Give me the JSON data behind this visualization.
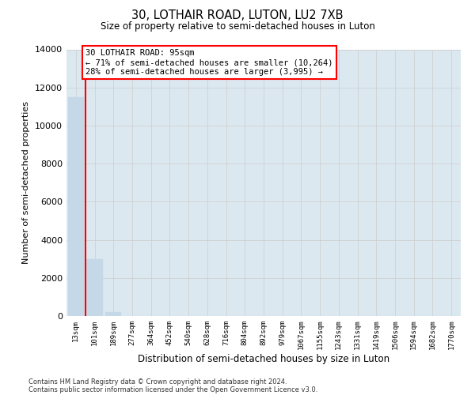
{
  "title1": "30, LOTHAIR ROAD, LUTON, LU2 7XB",
  "title2": "Size of property relative to semi-detached houses in Luton",
  "xlabel": "Distribution of semi-detached houses by size in Luton",
  "ylabel": "Number of semi-detached properties",
  "bar_labels": [
    "13sqm",
    "101sqm",
    "189sqm",
    "277sqm",
    "364sqm",
    "452sqm",
    "540sqm",
    "628sqm",
    "716sqm",
    "804sqm",
    "892sqm",
    "979sqm",
    "1067sqm",
    "1155sqm",
    "1243sqm",
    "1331sqm",
    "1419sqm",
    "1506sqm",
    "1594sqm",
    "1682sqm",
    "1770sqm"
  ],
  "bar_values": [
    11500,
    3000,
    200,
    0,
    0,
    0,
    0,
    0,
    0,
    0,
    0,
    0,
    0,
    0,
    0,
    0,
    0,
    0,
    0,
    0,
    0
  ],
  "bar_color": "#c5d8e8",
  "bar_edge_color": "#c5d8e8",
  "highlight_line_color": "red",
  "annotation_title": "30 LOTHAIR ROAD: 95sqm",
  "annotation_line1": "← 71% of semi-detached houses are smaller (10,264)",
  "annotation_line2": "28% of semi-detached houses are larger (3,995) →",
  "annotation_box_color": "white",
  "annotation_box_edgecolor": "red",
  "grid_color": "#cccccc",
  "background_color": "#dce8f0",
  "ylim": [
    0,
    14000
  ],
  "yticks": [
    0,
    2000,
    4000,
    6000,
    8000,
    10000,
    12000,
    14000
  ],
  "footer1": "Contains HM Land Registry data © Crown copyright and database right 2024.",
  "footer2": "Contains public sector information licensed under the Open Government Licence v3.0."
}
